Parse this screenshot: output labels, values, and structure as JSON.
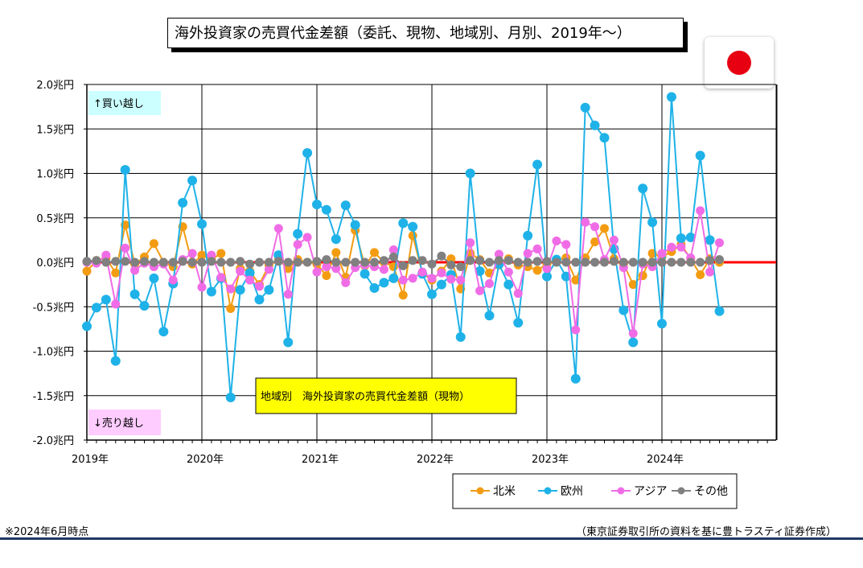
{
  "page": {
    "title": "海外投資家の売買代金差額（委託、現物、地域別、月別、2019年〜）",
    "note_left": "※2024年6月時点",
    "note_right": "（東京証券取引所の資料を基に豊トラスティ証券作成）",
    "flag_color": "#e60012"
  },
  "chart_data": {
    "type": "line",
    "title": "地域別　海外投資家の売買代金差額（現物）",
    "annotation_buy": "↑買い越し",
    "annotation_sell": "↓売り越し",
    "yticks": [
      "2.0兆円",
      "1.5兆円",
      "1.0兆円",
      "0.5兆円",
      "0.0兆円",
      "-0.5兆円",
      "-1.0兆円",
      "-1.5兆円",
      "-2.0兆円"
    ],
    "ylim": [
      -2.0,
      2.0
    ],
    "xticks": [
      "2019年",
      "2020年",
      "2021年",
      "2022年",
      "2023年",
      "2024年"
    ],
    "x_start": "2019-01",
    "grid": true,
    "legend_position": "bottom-right",
    "zero_line_color": "#ff0000",
    "series": [
      {
        "name": "北米",
        "color": "#f39c12",
        "values": [
          -0.1,
          0.02,
          0.05,
          -0.12,
          0.42,
          -0.02,
          0.06,
          0.21,
          0.0,
          -0.05,
          0.4,
          -0.02,
          0.08,
          0.03,
          0.1,
          -0.52,
          -0.07,
          -0.1,
          -0.25,
          -0.03,
          0.03,
          -0.07,
          0.03,
          0.0,
          -0.02,
          -0.15,
          0.11,
          -0.17,
          0.36,
          -0.04,
          0.11,
          0.0,
          -0.05,
          -0.37,
          0.3,
          -0.12,
          -0.2,
          -0.1,
          0.04,
          -0.3,
          0.1,
          0.03,
          -0.12,
          -0.03,
          0.04,
          -0.03,
          -0.05,
          -0.09,
          -0.02,
          0.02,
          0.05,
          -0.2,
          0.05,
          0.23,
          0.38,
          0.04,
          -0.02,
          -0.25,
          -0.15,
          0.1,
          0.06,
          0.12,
          0.2,
          0.04,
          -0.14,
          0.04,
          0.0
        ]
      },
      {
        "name": "欧州",
        "color": "#1fb2e8",
        "values": [
          -0.72,
          -0.51,
          -0.42,
          -1.11,
          1.04,
          -0.36,
          -0.49,
          -0.18,
          -0.78,
          -0.24,
          0.67,
          0.92,
          0.43,
          -0.33,
          -0.18,
          -1.52,
          -0.31,
          -0.12,
          -0.42,
          -0.31,
          0.08,
          -0.9,
          0.32,
          1.23,
          0.65,
          0.59,
          0.26,
          0.64,
          0.42,
          -0.13,
          -0.29,
          -0.23,
          -0.18,
          0.44,
          0.4,
          -0.13,
          -0.36,
          -0.25,
          -0.14,
          -0.84,
          1.0,
          -0.1,
          -0.6,
          -0.02,
          -0.25,
          -0.68,
          0.3,
          1.1,
          -0.16,
          0.03,
          -0.16,
          -1.31,
          1.74,
          1.54,
          1.4,
          0.15,
          -0.54,
          -0.9,
          0.83,
          0.45,
          -0.69,
          1.86,
          0.27,
          0.28,
          1.2,
          0.25,
          -0.55
        ]
      },
      {
        "name": "アジア",
        "color": "#f06ce6",
        "values": [
          0.0,
          -0.01,
          0.08,
          -0.47,
          0.16,
          -0.09,
          -0.01,
          -0.05,
          -0.02,
          -0.2,
          0.03,
          0.1,
          -0.28,
          0.08,
          -0.17,
          -0.3,
          -0.1,
          -0.2,
          -0.27,
          -0.08,
          0.38,
          -0.36,
          0.2,
          0.28,
          -0.11,
          -0.05,
          -0.07,
          -0.23,
          -0.06,
          -0.03,
          -0.05,
          -0.08,
          0.14,
          -0.2,
          -0.18,
          -0.11,
          -0.18,
          -0.12,
          -0.19,
          -0.2,
          0.22,
          -0.32,
          -0.24,
          0.09,
          -0.11,
          -0.35,
          0.1,
          0.15,
          -0.07,
          0.24,
          0.2,
          -0.76,
          0.45,
          0.4,
          0.03,
          0.25,
          -0.06,
          -0.8,
          -0.02,
          -0.05,
          0.1,
          0.17,
          0.17,
          0.05,
          0.58,
          -0.11,
          0.22
        ]
      },
      {
        "name": "その他",
        "color": "#808080",
        "values": [
          0.01,
          0.02,
          0.0,
          0.01,
          0.01,
          0.0,
          0.01,
          0.0,
          0.0,
          0.0,
          0.01,
          0.0,
          0.0,
          0.01,
          0.0,
          0.0,
          0.01,
          -0.02,
          0.0,
          0.0,
          0.01,
          0.0,
          0.0,
          0.0,
          0.01,
          0.03,
          0.0,
          0.0,
          0.0,
          0.0,
          0.0,
          0.02,
          0.06,
          -0.04,
          0.02,
          0.02,
          -0.02,
          0.07,
          -0.03,
          -0.05,
          0.02,
          0.02,
          0.0,
          0.02,
          0.02,
          0.0,
          0.0,
          0.01,
          0.01,
          0.0,
          0.0,
          0.0,
          0.0,
          0.0,
          0.0,
          0.01,
          0.0,
          0.0,
          0.0,
          0.0,
          0.0,
          0.0,
          0.0,
          0.0,
          0.0,
          0.02,
          0.03
        ]
      }
    ]
  }
}
